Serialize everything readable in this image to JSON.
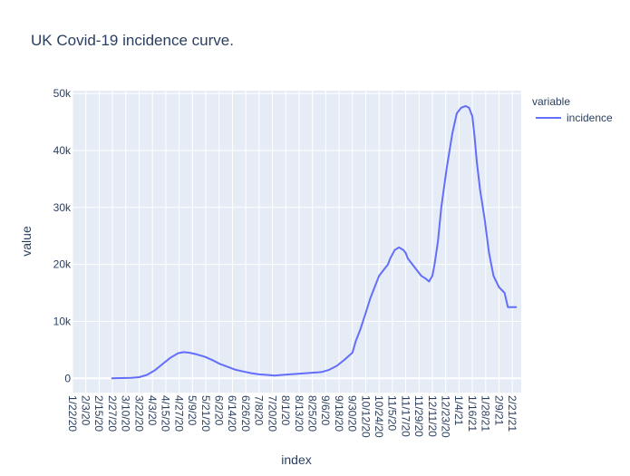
{
  "chart_data": {
    "type": "line",
    "title": "UK Covid-19 incidence curve.",
    "xlabel": "index",
    "ylabel": "value",
    "legend_title": "variable",
    "legend_position": "top-right",
    "grid": true,
    "colors": {
      "background": "#e5ecf6",
      "grid": "#ffffff",
      "line": "#636efa",
      "text": "#2a3f5f"
    },
    "ylim": [
      -2500,
      50500
    ],
    "x_ticks": [
      "1/22/20",
      "2/3/20",
      "2/15/20",
      "2/27/20",
      "3/10/20",
      "3/22/20",
      "4/3/20",
      "4/15/20",
      "4/27/20",
      "5/9/20",
      "5/21/20",
      "6/2/20",
      "6/14/20",
      "6/26/20",
      "7/8/20",
      "7/20/20",
      "8/1/20",
      "8/13/20",
      "8/25/20",
      "9/6/20",
      "9/18/20",
      "9/30/20",
      "10/12/20",
      "10/24/20",
      "11/5/20",
      "11/17/20",
      "11/29/20",
      "12/11/20",
      "12/23/20",
      "1/4/21",
      "1/16/21",
      "1/28/21",
      "2/9/21",
      "2/21/21"
    ],
    "y_ticks": [
      {
        "value": 0,
        "label": "0"
      },
      {
        "value": 10000,
        "label": "10k"
      },
      {
        "value": 20000,
        "label": "20k"
      },
      {
        "value": 30000,
        "label": "30k"
      },
      {
        "value": 40000,
        "label": "40k"
      },
      {
        "value": 50000,
        "label": "50k"
      }
    ],
    "series": [
      {
        "name": "incidence",
        "x": [
          "2/26/20",
          "3/5/20",
          "3/15/20",
          "3/22/20",
          "3/29/20",
          "4/5/20",
          "4/12/20",
          "4/19/20",
          "4/26/20",
          "5/1/20",
          "5/6/20",
          "5/13/20",
          "5/20/20",
          "5/27/20",
          "6/3/20",
          "6/10/20",
          "6/17/20",
          "6/24/20",
          "7/1/20",
          "7/8/20",
          "7/15/20",
          "7/22/20",
          "7/29/20",
          "8/5/20",
          "8/12/20",
          "8/19/20",
          "8/26/20",
          "9/2/20",
          "9/9/20",
          "9/16/20",
          "9/23/20",
          "9/30/20",
          "10/3/20",
          "10/7/20",
          "10/12/20",
          "10/16/20",
          "10/20/20",
          "10/24/20",
          "10/28/20",
          "11/1/20",
          "11/3/20",
          "11/7/20",
          "11/11/20",
          "11/15/20",
          "11/17/20",
          "11/19/20",
          "11/23/20",
          "11/27/20",
          "12/1/20",
          "12/5/20",
          "12/8/20",
          "12/11/20",
          "12/13/20",
          "12/16/20",
          "12/19/20",
          "12/24/20",
          "12/29/20",
          "1/2/21",
          "1/6/21",
          "1/10/21",
          "1/13/21",
          "1/16/21",
          "1/18/21",
          "1/20/21",
          "1/23/21",
          "1/27/21",
          "1/31/21",
          "2/4/21",
          "2/9/21",
          "2/14/21",
          "2/17/21",
          "2/21/21",
          "2/25/21"
        ],
        "values": [
          0,
          50,
          100,
          200,
          600,
          1400,
          2500,
          3600,
          4400,
          4600,
          4500,
          4200,
          3800,
          3200,
          2500,
          2000,
          1500,
          1200,
          900,
          700,
          600,
          500,
          600,
          700,
          800,
          900,
          1000,
          1100,
          1500,
          2200,
          3300,
          4500,
          6500,
          8500,
          11500,
          14000,
          16000,
          18000,
          19000,
          20000,
          21000,
          22500,
          23000,
          22500,
          22000,
          21000,
          20000,
          19000,
          18000,
          17500,
          17000,
          18000,
          20000,
          24000,
          30000,
          37000,
          43000,
          46500,
          47500,
          47800,
          47500,
          46000,
          42500,
          38000,
          33000,
          28000,
          22000,
          18000,
          16000,
          15000,
          12500,
          12500,
          12500
        ]
      }
    ]
  }
}
